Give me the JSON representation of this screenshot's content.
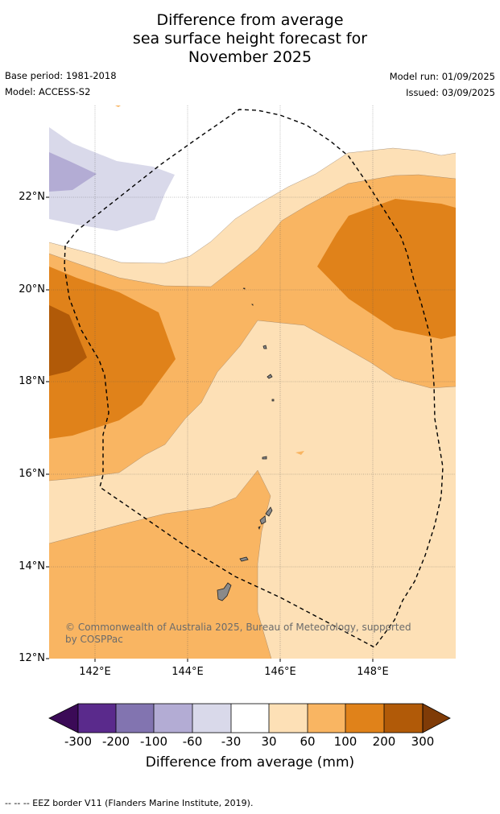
{
  "title": {
    "line1": "Difference from average",
    "line2": "sea surface height forecast for",
    "line3": "November 2025"
  },
  "meta": {
    "base_period": "Base period: 1981-2018",
    "model": "Model: ACCESS-S2",
    "model_run": "Model run: 01/09/2025",
    "issued": "Issued: 03/09/2025"
  },
  "map": {
    "lat_ticks": [
      "22°N",
      "20°N",
      "18°N",
      "16°N",
      "14°N",
      "12°N"
    ],
    "lon_ticks": [
      "142°E",
      "144°E",
      "146°E",
      "148°E"
    ],
    "copyright": "© Commonwealth of Australia 2025, Bureau of Meteorology, supported by COSPPac",
    "land_color": "#8a8a8a",
    "eez_line_style": "dashed black"
  },
  "colorbar": {
    "tick_labels": [
      "-300",
      "-200",
      "-100",
      "-60",
      "-30",
      "30",
      "60",
      "100",
      "200",
      "300"
    ],
    "colors": [
      "#3b0a57",
      "#5a2a8c",
      "#8274b0",
      "#b3acd4",
      "#d9d9ea",
      "#ffffff",
      "#fde0b6",
      "#f9b562",
      "#e0821a",
      "#b15a08",
      "#7f3b07"
    ],
    "title": "Difference from average (mm)"
  },
  "footer": "--  --  -- EEZ border V11 (Flanders Marine Institute, 2019)."
}
